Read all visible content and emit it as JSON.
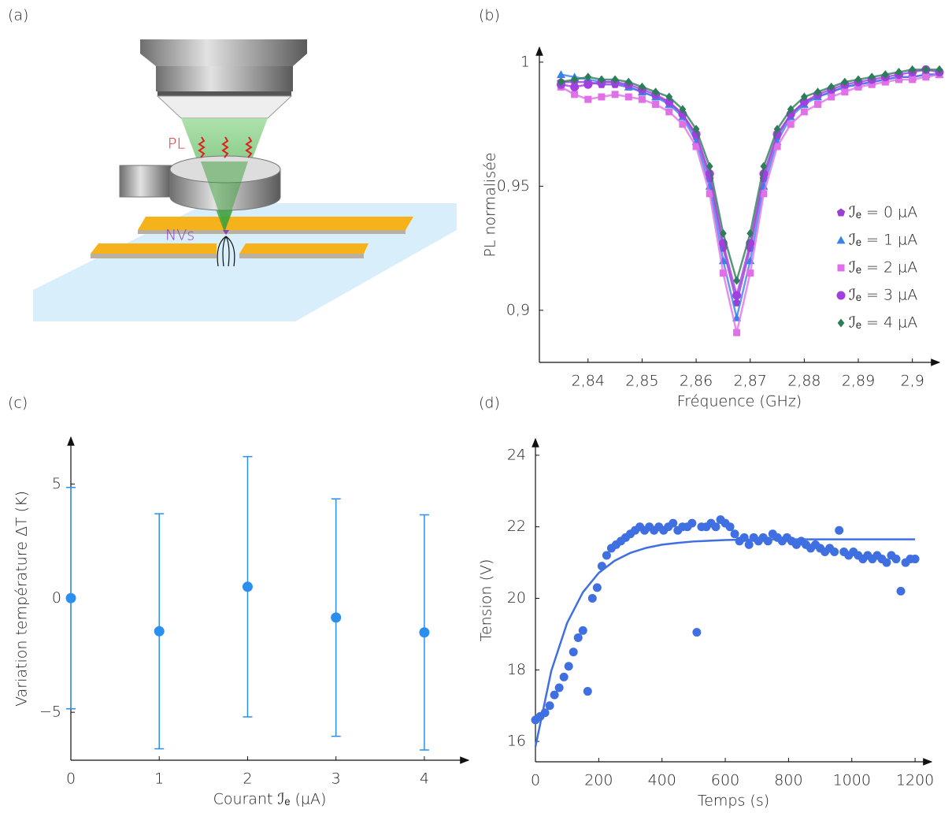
{
  "panels": {
    "a": {
      "label": "(a)",
      "pl": "PL",
      "nvs": "NVs"
    }
  },
  "chart_data": [
    {
      "type": "scatter",
      "panel_label": "(b)",
      "x_label": "Fréquence (GHz)",
      "y_label": "PL normalisée",
      "fit_lines": true,
      "legend": "lower right",
      "x": [
        2.835,
        2.8375,
        2.84,
        2.8425,
        2.845,
        2.8475,
        2.85,
        2.8525,
        2.855,
        2.8575,
        2.86,
        2.8625,
        2.865,
        2.8675,
        2.87,
        2.8725,
        2.875,
        2.8775,
        2.88,
        2.8825,
        2.885,
        2.8875,
        2.89,
        2.8925,
        2.895,
        2.8975,
        2.9,
        2.9025,
        2.905
      ],
      "series": [
        {
          "name": "ℐₑ = 0 µA",
          "color": "#9a3fd3",
          "marker": "pentagon",
          "values": [
            0.992,
            0.992,
            0.992,
            0.991,
            0.991,
            0.99,
            0.988,
            0.986,
            0.984,
            0.979,
            0.97,
            0.953,
            0.925,
            0.903,
            0.925,
            0.953,
            0.97,
            0.979,
            0.984,
            0.986,
            0.988,
            0.99,
            0.991,
            0.992,
            0.993,
            0.994,
            0.994,
            0.995,
            0.995
          ]
        },
        {
          "name": "ℐₑ = 1 µA",
          "color": "#3b82e8",
          "marker": "triangle",
          "values": [
            0.995,
            0.994,
            0.993,
            0.992,
            0.992,
            0.99,
            0.988,
            0.986,
            0.983,
            0.978,
            0.968,
            0.95,
            0.92,
            0.897,
            0.92,
            0.95,
            0.968,
            0.978,
            0.983,
            0.986,
            0.988,
            0.99,
            0.991,
            0.992,
            0.993,
            0.994,
            0.994,
            0.995,
            0.995
          ]
        },
        {
          "name": "ℐₑ = 2 µA",
          "color": "#e070e8",
          "marker": "square",
          "values": [
            0.99,
            0.987,
            0.985,
            0.986,
            0.987,
            0.986,
            0.985,
            0.983,
            0.98,
            0.975,
            0.966,
            0.947,
            0.915,
            0.891,
            0.915,
            0.947,
            0.966,
            0.975,
            0.98,
            0.983,
            0.986,
            0.988,
            0.99,
            0.991,
            0.992,
            0.993,
            0.993,
            0.994,
            0.995
          ]
        },
        {
          "name": "ℐₑ = 3 µA",
          "color": "#a23fe0",
          "marker": "circle",
          "values": [
            0.991,
            0.99,
            0.991,
            0.992,
            0.992,
            0.991,
            0.989,
            0.987,
            0.984,
            0.979,
            0.971,
            0.955,
            0.927,
            0.906,
            0.927,
            0.955,
            0.971,
            0.979,
            0.984,
            0.987,
            0.989,
            0.991,
            0.992,
            0.993,
            0.994,
            0.995,
            0.996,
            0.997,
            0.996
          ]
        },
        {
          "name": "ℐₑ = 4 µA",
          "color": "#2e7d5a",
          "marker": "diamond",
          "values": [
            0.992,
            0.993,
            0.994,
            0.993,
            0.993,
            0.992,
            0.99,
            0.988,
            0.986,
            0.981,
            0.973,
            0.958,
            0.931,
            0.912,
            0.931,
            0.958,
            0.973,
            0.981,
            0.986,
            0.988,
            0.99,
            0.992,
            0.993,
            0.994,
            0.995,
            0.996,
            0.997,
            0.997,
            0.997
          ]
        }
      ],
      "xlim": [
        2.831,
        2.905
      ],
      "ylim": [
        0.879,
        1.006
      ],
      "xticks": [
        {
          "value": 2.84,
          "label": "2,84"
        },
        {
          "value": 2.85,
          "label": "2,85"
        },
        {
          "value": 2.86,
          "label": "2,86"
        },
        {
          "value": 2.87,
          "label": "2,87"
        },
        {
          "value": 2.88,
          "label": "2,88"
        },
        {
          "value": 2.89,
          "label": "2,89"
        },
        {
          "value": 2.9,
          "label": "2,9"
        }
      ],
      "yticks": [
        {
          "value": 0.9,
          "label": "0,9"
        },
        {
          "value": 0.95,
          "label": "0,95"
        },
        1
      ]
    },
    {
      "type": "errorbar",
      "panel_label": "(c)",
      "x_label": "Courant ℐₑ (µA)",
      "y_label": "Variation température ΔT (K)",
      "x": [
        0,
        1,
        2,
        3,
        4
      ],
      "values": [
        0,
        -1.45,
        0.5,
        -0.85,
        -1.5
      ],
      "errors": [
        4.85,
        5.15,
        5.7,
        5.2,
        5.15
      ],
      "color": "#2b8ff0",
      "xlim": [
        0,
        4.5
      ],
      "ylim": [
        -7.1,
        7.05
      ],
      "xticks": [
        0,
        1,
        2,
        3,
        4
      ],
      "yticks": [
        {
          "value": -5,
          "label": "−5"
        },
        0,
        5
      ]
    },
    {
      "type": "scatter",
      "panel_label": "(d)",
      "x_label": "Temps (s)",
      "y_label": "Tension (V)",
      "series": [
        {
          "color": "#3f6fe0",
          "style": "points",
          "x": [
            0,
            15,
            30,
            45,
            60,
            75,
            90,
            105,
            120,
            135,
            150,
            165,
            180,
            195,
            210,
            225,
            240,
            255,
            270,
            285,
            300,
            315,
            330,
            345,
            360,
            375,
            390,
            405,
            420,
            435,
            450,
            465,
            480,
            495,
            510,
            525,
            540,
            555,
            570,
            585,
            600,
            615,
            630,
            645,
            660,
            675,
            690,
            705,
            720,
            735,
            750,
            765,
            780,
            795,
            810,
            825,
            840,
            855,
            870,
            885,
            900,
            915,
            930,
            945,
            960,
            975,
            990,
            1005,
            1020,
            1035,
            1050,
            1065,
            1080,
            1095,
            1110,
            1125,
            1140,
            1155,
            1170,
            1185,
            1200
          ],
          "values": [
            16.6,
            16.7,
            16.8,
            17.0,
            17.3,
            17.5,
            17.8,
            18.1,
            18.5,
            18.9,
            19.1,
            17.4,
            20.0,
            20.3,
            20.9,
            21.2,
            21.4,
            21.5,
            21.6,
            21.7,
            21.8,
            21.9,
            22.0,
            21.9,
            22.0,
            21.9,
            22.0,
            21.9,
            22.0,
            22.1,
            21.9,
            22.0,
            22.0,
            22.1,
            19.05,
            22.0,
            22.0,
            22.1,
            22.0,
            22.2,
            22.1,
            22.0,
            21.8,
            21.6,
            21.7,
            21.5,
            21.7,
            21.6,
            21.7,
            21.6,
            21.8,
            21.7,
            21.6,
            21.7,
            21.6,
            21.5,
            21.6,
            21.5,
            21.4,
            21.5,
            21.4,
            21.3,
            21.4,
            21.3,
            21.9,
            21.3,
            21.2,
            21.3,
            21.2,
            21.1,
            21.2,
            21.1,
            21.2,
            21.1,
            21.0,
            21.2,
            21.1,
            20.2,
            21.0,
            21.1,
            21.1
          ]
        },
        {
          "color": "#3f6fe0",
          "style": "line",
          "x": [
            0,
            50,
            100,
            150,
            200,
            250,
            300,
            350,
            400,
            450,
            500,
            550,
            600,
            650,
            700,
            750,
            800,
            850,
            900,
            950,
            1000,
            1050,
            1100,
            1150,
            1200
          ],
          "values": [
            15.85,
            17.97,
            19.31,
            20.17,
            20.71,
            21.05,
            21.27,
            21.41,
            21.5,
            21.55,
            21.59,
            21.61,
            21.63,
            21.64,
            21.64,
            21.65,
            21.65,
            21.65,
            21.65,
            21.65,
            21.65,
            21.65,
            21.65,
            21.65,
            21.65
          ]
        }
      ],
      "xlim": [
        0,
        1252
      ],
      "ylim": [
        15.43,
        24.46
      ],
      "xticks": [
        0,
        200,
        400,
        600,
        800,
        1000,
        1200
      ],
      "yticks": [
        16,
        18,
        20,
        22,
        24
      ]
    }
  ]
}
